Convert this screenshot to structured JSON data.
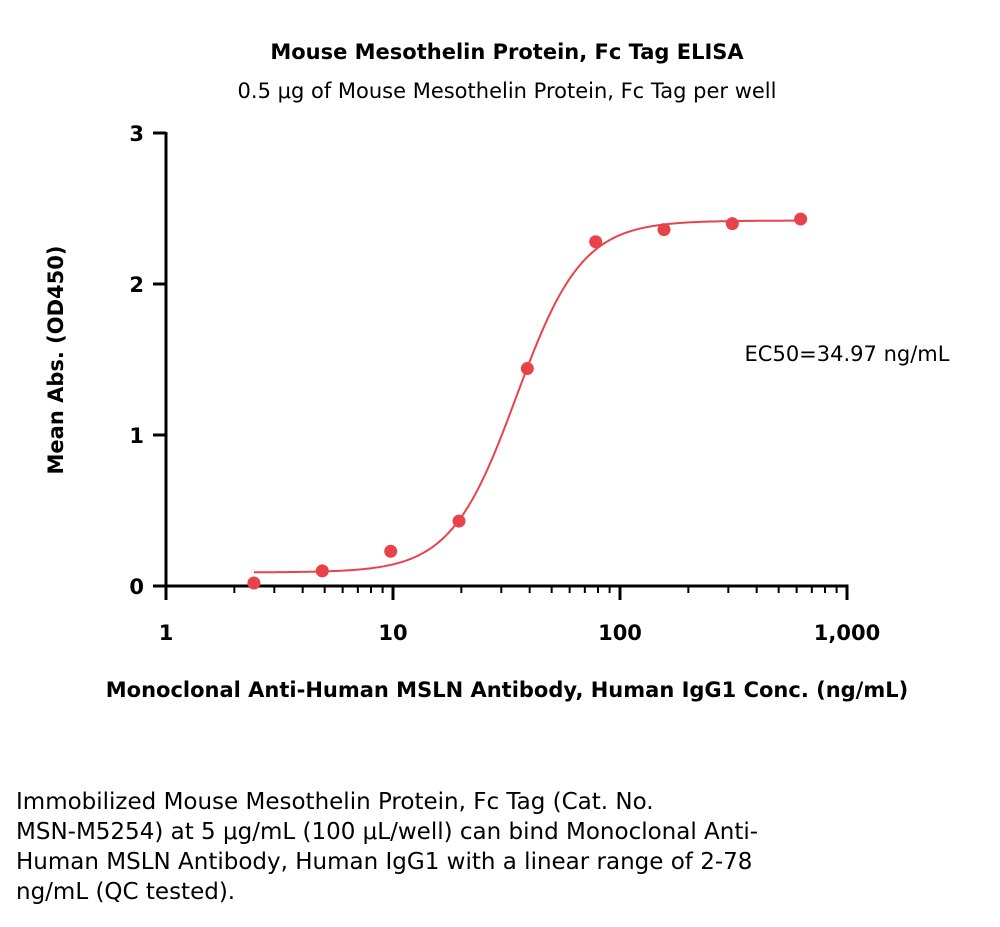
{
  "chart_data": {
    "type": "scatter",
    "title": "Mouse Mesothelin Protein, Fc Tag ELISA",
    "subtitle": "0.5 μg of Mouse Mesothelin Protein, Fc Tag per well",
    "xlabel": "Monoclonal Anti-Human MSLN Antibody, Human IgG1 Conc. (ng/mL)",
    "ylabel": "Mean Abs. (OD450)",
    "xscale": "log",
    "xlim": [
      1,
      1000
    ],
    "ylim": [
      0,
      3
    ],
    "x_ticks": [
      1,
      10,
      100,
      1000
    ],
    "x_tick_labels": [
      "1",
      "10",
      "100",
      "1,000"
    ],
    "y_ticks": [
      0,
      1,
      2,
      3
    ],
    "y_tick_labels": [
      "0",
      "1",
      "2",
      "3"
    ],
    "color": "#e8434b",
    "series": [
      {
        "name": "Monoclonal Anti-Human MSLN Antibody, Human IgG1",
        "x": [
          2.44,
          4.88,
          9.77,
          19.53,
          39.06,
          78.13,
          156.25,
          312.5,
          625
        ],
        "y": [
          0.02,
          0.1,
          0.23,
          0.43,
          1.44,
          2.28,
          2.36,
          2.4,
          2.43
        ]
      }
    ],
    "fit": {
      "model": "4PL",
      "bottom": 0.09,
      "top": 2.42,
      "ec50": 34.97,
      "hill": 3.0,
      "x_range": [
        2.44,
        625
      ]
    },
    "annotations": [
      "EC50=34.97 ng/mL"
    ],
    "grid": false
  },
  "caption": {
    "lines": [
      "Immobilized Mouse Mesothelin Protein, Fc Tag (Cat. No.",
      "MSN-M5254) at 5 μg/mL (100 μL/well) can bind Monoclonal Anti-",
      "Human MSLN Antibody, Human IgG1 with a linear range of 2-78",
      "ng/mL (QC tested)."
    ]
  }
}
